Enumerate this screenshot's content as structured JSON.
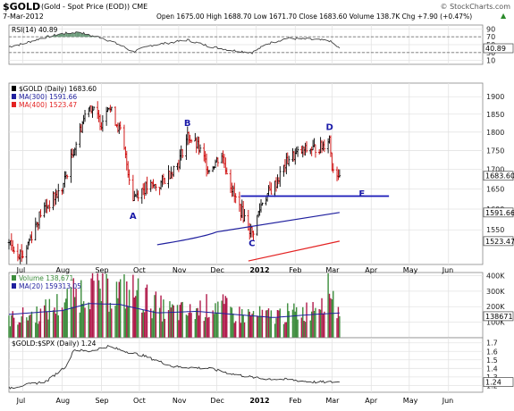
{
  "header": {
    "symbol": "$GOLD",
    "description": "(Gold - Spot Price (EOD)) CME",
    "date": "7-Mar-2012",
    "quote": "Open 1675.00  High 1688.70  Low 1671.70  Close 1683.60  Volume 138.7K  Chg +7.90 (+0.47%)",
    "quote_arrow": "▲",
    "watermark": "© StockCharts.com"
  },
  "colors": {
    "up": "#000000",
    "down": "#cc0000",
    "ma300": "#1f1f9e",
    "ma400": "#e32222",
    "support": "#1818b8",
    "annotation": "#1a1aa8",
    "vol_up": "#3c8c3c",
    "vol_down": "#b0194a",
    "rsi_fill": "#6b9b7a",
    "grid": "#e3e3e3"
  },
  "chart_data": [
    {
      "type": "line",
      "title": "RSI(14) 40.89",
      "legend": [
        "RSI(14) 40.89"
      ],
      "yticks": [
        10,
        30,
        50,
        70,
        90
      ],
      "ylim": [
        0,
        100
      ],
      "reference_lines": [
        30,
        70
      ],
      "last_value_label": "40.89",
      "series": [
        {
          "name": "RSI(14)",
          "x": [
            "2011-06-20",
            "2011-07-01",
            "2011-07-15",
            "2011-08-01",
            "2011-08-15",
            "2011-08-22",
            "2011-09-01",
            "2011-09-15",
            "2011-09-26",
            "2011-10-10",
            "2011-10-25",
            "2011-11-08",
            "2011-11-25",
            "2011-12-12",
            "2011-12-29",
            "2012-01-10",
            "2012-01-25",
            "2012-02-10",
            "2012-02-28",
            "2012-03-07"
          ],
          "values": [
            45,
            52,
            66,
            78,
            82,
            74,
            68,
            50,
            32,
            48,
            55,
            62,
            46,
            36,
            30,
            52,
            66,
            64,
            60,
            40.89
          ]
        }
      ]
    },
    {
      "type": "line",
      "subtype": "ohlc",
      "title": "$GOLD (Daily) 1683.60",
      "legend": [
        "$GOLD (Daily) 1683.60",
        "MA(300) 1591.66",
        "MA(400) 1523.47"
      ],
      "x_ticks": [
        "Jul",
        "Aug",
        "Sep",
        "Oct",
        "Nov",
        "Dec",
        "2012",
        "Feb",
        "Mar",
        "Apr",
        "May",
        "Jun"
      ],
      "yticks": [
        1550,
        1600,
        1650,
        1700,
        1750,
        1800,
        1850,
        1900
      ],
      "ylim": [
        1470,
        1940
      ],
      "y_scale": "log",
      "price_labels": [
        "1683.60",
        "1591.66",
        "1523.47"
      ],
      "series": [
        {
          "name": "$GOLD",
          "x": [
            "2011-06-20",
            "2011-07-01",
            "2011-07-15",
            "2011-08-01",
            "2011-08-10",
            "2011-08-22",
            "2011-09-01",
            "2011-09-06",
            "2011-09-16",
            "2011-09-26",
            "2011-10-03",
            "2011-10-17",
            "2011-11-01",
            "2011-11-08",
            "2011-11-16",
            "2011-11-25",
            "2011-12-05",
            "2011-12-15",
            "2011-12-29",
            "2012-01-06",
            "2012-01-16",
            "2012-01-27",
            "2012-02-08",
            "2012-02-22",
            "2012-02-28",
            "2012-03-01",
            "2012-03-07"
          ],
          "values": [
            1520,
            1490,
            1590,
            1650,
            1750,
            1880,
            1825,
            1880,
            1800,
            1630,
            1650,
            1660,
            1720,
            1790,
            1760,
            1700,
            1740,
            1630,
            1540,
            1620,
            1660,
            1730,
            1750,
            1760,
            1785,
            1710,
            1683.6
          ]
        },
        {
          "name": "MA(300)",
          "x": [
            "2011-12-01",
            "2012-03-07"
          ],
          "values": [
            1545,
            1591.66
          ]
        },
        {
          "name": "MA(400)",
          "x": [
            "2011-12-26",
            "2012-03-07"
          ],
          "values": [
            1478,
            1523.47
          ]
        },
        {
          "name": "Level E",
          "x": [
            "2011-12-20",
            "2012-04-15"
          ],
          "values": [
            1632,
            1632
          ]
        }
      ],
      "annotations": [
        {
          "text": "A",
          "x": "2011-09-26",
          "y": 1585
        },
        {
          "text": "B",
          "x": "2011-11-08",
          "y": 1827
        },
        {
          "text": "C",
          "x": "2011-12-29",
          "y": 1520
        },
        {
          "text": "D",
          "x": "2012-02-28",
          "y": 1815
        },
        {
          "text": "E",
          "x": "2012-03-25",
          "y": 1640
        }
      ]
    },
    {
      "type": "bar",
      "title": "Volume 138,671",
      "legend": [
        "Volume 138,671",
        "MA(20) 159313.05"
      ],
      "yticks_labels": [
        "100K",
        "200K",
        "300K",
        "400K"
      ],
      "yticks": [
        100000,
        200000,
        300000,
        400000
      ],
      "ylim": [
        0,
        420000
      ],
      "last_value_label": "138671",
      "series": [
        {
          "name": "Volume",
          "x": [
            "2011-06-20",
            "2011-07-15",
            "2011-08-05",
            "2011-08-22",
            "2011-09-06",
            "2011-09-26",
            "2011-10-20",
            "2011-11-10",
            "2011-12-01",
            "2011-12-16",
            "2012-01-12",
            "2012-02-10",
            "2012-02-29",
            "2012-03-07"
          ],
          "values": [
            120000,
            160000,
            240000,
            330000,
            290000,
            300000,
            180000,
            160000,
            220000,
            150000,
            140000,
            170000,
            330000,
            138671
          ]
        },
        {
          "name": "MA(20)",
          "x": [
            "2011-06-20",
            "2011-08-01",
            "2011-08-22",
            "2011-09-15",
            "2011-10-15",
            "2011-11-15",
            "2011-12-15",
            "2012-01-15",
            "2012-02-15",
            "2012-03-07"
          ],
          "values": [
            150000,
            175000,
            220000,
            215000,
            160000,
            170000,
            150000,
            130000,
            150000,
            159313.05
          ]
        }
      ]
    },
    {
      "type": "line",
      "title": "$GOLD:$SPX (Daily) 1.24",
      "legend": [
        "$GOLD:$SPX (Daily) 1.24"
      ],
      "yticks": [
        1.2,
        1.3,
        1.4,
        1.5,
        1.6,
        1.7
      ],
      "ylim": [
        1.12,
        1.76
      ],
      "last_value_label": "1.24",
      "series": [
        {
          "name": "$GOLD:$SPX",
          "x": [
            "2011-06-20",
            "2011-07-01",
            "2011-07-20",
            "2011-08-05",
            "2011-08-10",
            "2011-08-22",
            "2011-09-06",
            "2011-09-20",
            "2011-10-04",
            "2011-10-28",
            "2011-11-25",
            "2011-12-15",
            "2012-01-05",
            "2012-01-25",
            "2012-02-15",
            "2012-03-07"
          ],
          "values": [
            1.17,
            1.2,
            1.25,
            1.44,
            1.62,
            1.6,
            1.66,
            1.6,
            1.55,
            1.42,
            1.4,
            1.33,
            1.28,
            1.27,
            1.24,
            1.24
          ]
        }
      ]
    }
  ]
}
